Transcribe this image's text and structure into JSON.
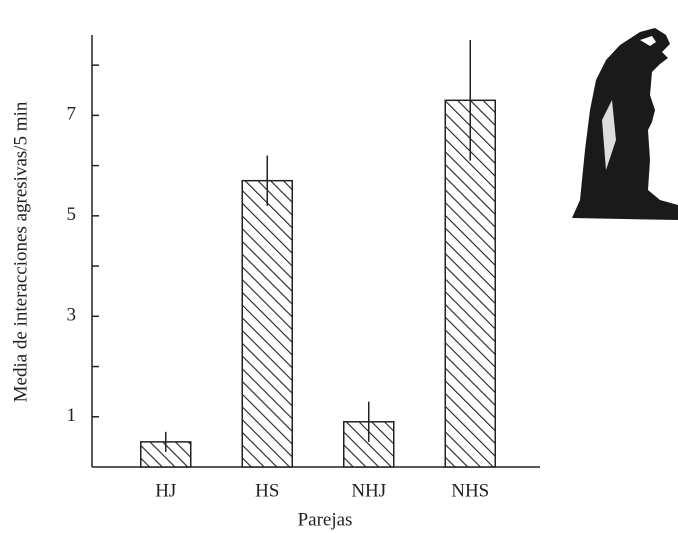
{
  "chart_data": {
    "type": "bar",
    "x_label": "Parejas",
    "y_label": "Media de interacciones agresivas/5 min",
    "categories": [
      "HJ",
      "HS",
      "NHJ",
      "NHS"
    ],
    "values": [
      0.5,
      5.7,
      0.9,
      7.3
    ],
    "errors": [
      0.2,
      0.5,
      0.4,
      1.2
    ],
    "color": "#222222",
    "ylim": [
      0,
      8.6
    ],
    "yticks": [
      1,
      3,
      5,
      7
    ],
    "minor_yticks": [
      2,
      4,
      6,
      8
    ]
  }
}
